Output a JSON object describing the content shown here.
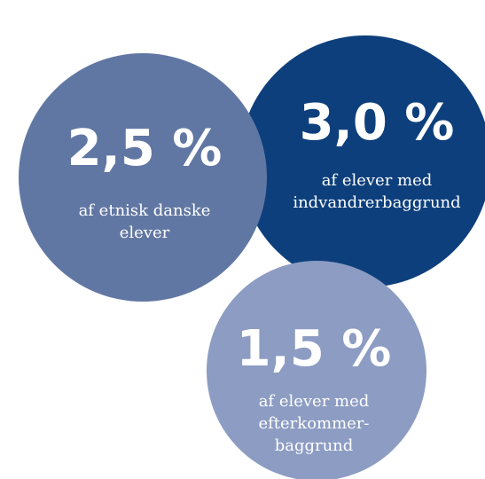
{
  "items": [
    {
      "value": "2,5 %",
      "lines": [
        "af etnisk danske",
        "elever"
      ]
    },
    {
      "value": "3,0 %",
      "lines": [
        "af elever med",
        "indvandrerbaggrund"
      ]
    },
    {
      "value": "1,5 %",
      "lines": [
        "af elever med",
        "efterkommer-",
        "baggrund"
      ]
    }
  ]
}
